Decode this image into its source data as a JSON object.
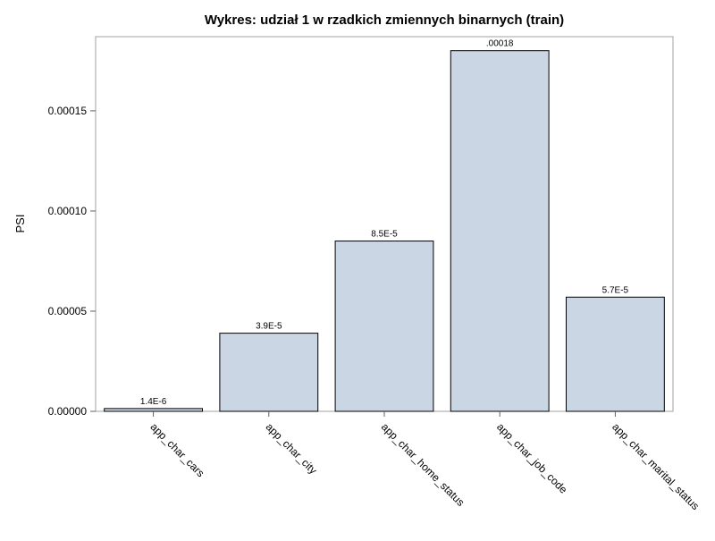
{
  "chart_data": {
    "type": "bar",
    "title": "Wykres: udział 1 w rzadkich zmiennych binarnych (train)",
    "ylabel": "PSI",
    "xlabel": "",
    "categories": [
      "app_char_cars",
      "app_char_city",
      "app_char_home_status",
      "app_char_job_code",
      "app_char_marital_status"
    ],
    "values": [
      1.4e-06,
      3.9e-05,
      8.5e-05,
      0.00018,
      5.7e-05
    ],
    "data_labels": [
      "1.4E-6",
      "3.9E-5",
      "8.5E-5",
      ".00018",
      "5.7E-5"
    ],
    "yticks": [
      0,
      5e-05,
      0.0001,
      0.00015
    ],
    "ytick_labels": [
      "0.00000",
      "0.00005",
      "0.00010",
      "0.00015"
    ],
    "ylim": [
      0,
      0.000187
    ],
    "grid": false,
    "colors": {
      "bar_fill": "#cbd6e5",
      "bar_stroke": "#000000",
      "frame": "#a0a0a0"
    }
  }
}
